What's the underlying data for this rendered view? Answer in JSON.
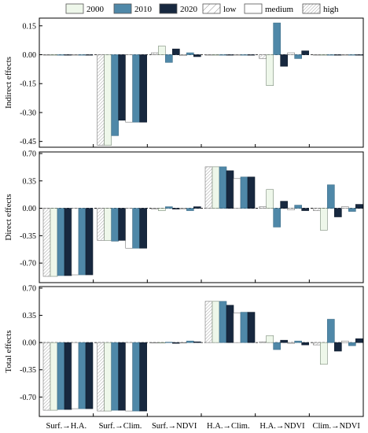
{
  "chart_data": {
    "type": "bar",
    "legend": {
      "placement": "top",
      "entries": [
        {
          "key": "y2000",
          "label": "2000",
          "fill": "#eef7ea",
          "pattern": "none"
        },
        {
          "key": "y2010",
          "label": "2010",
          "fill": "#4f88a8",
          "pattern": "none"
        },
        {
          "key": "y2020",
          "label": "2020",
          "fill": "#17283f",
          "pattern": "none"
        },
        {
          "key": "low",
          "label": "low",
          "fill": "#ffffff",
          "pattern": "diag-sparse"
        },
        {
          "key": "medium",
          "label": "medium",
          "fill": "#ffffff",
          "pattern": "none"
        },
        {
          "key": "high",
          "label": "high",
          "fill": "#ffffff",
          "pattern": "diag-dense"
        }
      ]
    },
    "bar_order": [
      "high",
      "y2000",
      "y2010",
      "y2020",
      "medium",
      "y2010b",
      "y2020b"
    ],
    "categories": [
      "Surf.→H.A.",
      "Surf.→Clim.",
      "Surf.→NDVI",
      "H.A.→Clim.",
      "H.A.→NDVI",
      "Clim.→NDVI"
    ],
    "panels": [
      {
        "ylabel": "Indirect effects",
        "ylim": [
          -0.48,
          0.19
        ],
        "ticks": [
          0.15,
          0.0,
          -0.15,
          -0.3,
          -0.45
        ],
        "tick_labels": [
          "0.15",
          "0.00",
          "-0.15",
          "-0.30",
          "-0.45"
        ],
        "groups": [
          [
            0,
            0,
            0,
            0,
            0,
            0,
            0
          ],
          [
            -0.47,
            -0.47,
            -0.42,
            -0.34,
            -0.35,
            -0.35,
            -0.35
          ],
          [
            0.01,
            0.045,
            -0.04,
            0.03,
            -0.005,
            0.01,
            -0.01
          ],
          [
            0,
            0,
            0,
            0,
            0,
            0,
            0
          ],
          [
            -0.02,
            -0.16,
            0.165,
            -0.06,
            0.01,
            -0.02,
            0.02
          ],
          [
            0,
            0,
            0,
            0,
            0,
            0,
            0
          ]
        ]
      },
      {
        "ylabel": "Direct effects",
        "ylim": [
          -0.95,
          0.72
        ],
        "ticks": [
          0.7,
          0.35,
          0.0,
          -0.35,
          -0.7
        ],
        "tick_labels": [
          "0.70",
          "0.35",
          "0.00",
          "-0.35",
          "-0.70"
        ],
        "groups": [
          [
            -0.87,
            -0.87,
            -0.86,
            -0.86,
            -0.85,
            -0.85,
            -0.85
          ],
          [
            -0.41,
            -0.41,
            -0.42,
            -0.41,
            -0.51,
            -0.51,
            -0.51
          ],
          [
            -0.01,
            -0.03,
            0.02,
            -0.01,
            -0.01,
            -0.03,
            0.02
          ],
          [
            0.53,
            0.53,
            0.53,
            0.48,
            0.38,
            0.4,
            0.4
          ],
          [
            0.02,
            0.24,
            -0.24,
            0.09,
            -0.02,
            0.04,
            -0.03
          ],
          [
            -0.03,
            -0.28,
            0.3,
            -0.11,
            0.02,
            -0.04,
            0.05
          ]
        ]
      },
      {
        "ylabel": "Total effects",
        "ylim": [
          -0.95,
          0.72
        ],
        "ticks": [
          0.7,
          0.35,
          0.0,
          -0.35,
          -0.7
        ],
        "tick_labels": [
          "0.70",
          "0.35",
          "0.00",
          "-0.35",
          "-0.70"
        ],
        "groups": [
          [
            -0.87,
            -0.87,
            -0.86,
            -0.86,
            -0.85,
            -0.85,
            -0.85
          ],
          [
            -0.88,
            -0.88,
            -0.87,
            -0.87,
            -0.88,
            -0.88,
            -0.88
          ],
          [
            0,
            -0.005,
            0.005,
            -0.01,
            -0.005,
            0.02,
            0.01
          ],
          [
            0.53,
            0.53,
            0.53,
            0.48,
            0.38,
            0.39,
            0.39
          ],
          [
            0.01,
            0.09,
            -0.09,
            0.03,
            -0.01,
            0.02,
            -0.03
          ],
          [
            -0.03,
            -0.28,
            0.3,
            -0.11,
            0.02,
            -0.04,
            0.05
          ]
        ]
      }
    ]
  }
}
